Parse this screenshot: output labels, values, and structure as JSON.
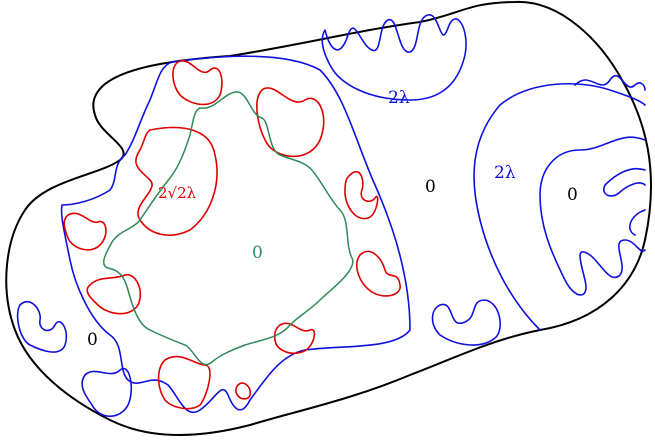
{
  "labels": {
    "outer_zero": "0",
    "center_zero": "0",
    "green_zero": "0",
    "right_zero": "0",
    "blue_top": "2λ",
    "blue_right": "2λ",
    "red_label": "2√2λ"
  },
  "colors": {
    "boundary": "#000000",
    "blue": "#1010e0",
    "red": "#e00000",
    "green": "#2e8b57"
  }
}
